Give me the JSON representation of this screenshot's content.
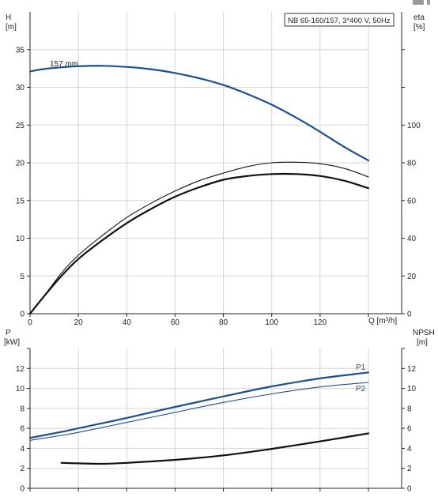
{
  "chart_data": [
    {
      "type": "line",
      "title": "NB 65-160/157, 3*400 V, 50Hz",
      "xlabel": "Q [m³/h]",
      "ylabel_left": [
        "H",
        "[m]"
      ],
      "ylabel_right": [
        "eta",
        "[%]"
      ],
      "xlim": [
        0,
        140
      ],
      "ylim_left": [
        0,
        40
      ],
      "ylim_right": [
        0,
        160
      ],
      "xticks": [
        "0",
        "20",
        "40",
        "60",
        "80",
        "100",
        "120"
      ],
      "yticks_left": [
        "0",
        "5",
        "10",
        "15",
        "20",
        "25",
        "30",
        "35"
      ],
      "yticks_right": [
        "0",
        "20",
        "40",
        "60",
        "80",
        "100"
      ],
      "grid": true,
      "annotations": [
        {
          "text": "157 mm"
        }
      ],
      "series": [
        {
          "axis": "left",
          "color": "#1f4e8c",
          "width": 2.2,
          "extended": true,
          "x": [
            0,
            5,
            13,
            20,
            30,
            40,
            50,
            60,
            70,
            80,
            90,
            100,
            110,
            120,
            130,
            140
          ],
          "y": [
            32.1,
            32.4,
            32.65,
            32.8,
            32.85,
            32.7,
            32.4,
            31.9,
            31.2,
            30.3,
            29.1,
            27.7,
            26.0,
            24.1,
            22.1,
            20.3
          ]
        },
        {
          "axis": "right",
          "color": "#111111",
          "width": 1.1,
          "extended": true,
          "x": [
            0,
            5,
            13,
            20,
            30,
            40,
            50,
            60,
            70,
            80,
            90,
            100,
            110,
            120,
            130,
            140
          ],
          "y": [
            0,
            8,
            21.5,
            31,
            41.5,
            51,
            58.5,
            65,
            70.5,
            74.5,
            78,
            80,
            80.3,
            79.5,
            77,
            72.5
          ]
        },
        {
          "axis": "right",
          "color": "#111111",
          "width": 2.2,
          "extended": true,
          "x": [
            0,
            5,
            13,
            20,
            30,
            40,
            50,
            60,
            70,
            80,
            90,
            100,
            110,
            120,
            130,
            140
          ],
          "y": [
            0,
            8,
            20,
            29,
            39,
            48,
            55.5,
            62,
            67,
            71,
            73,
            74,
            74,
            73,
            70.5,
            66.5
          ]
        }
      ]
    },
    {
      "type": "line",
      "xlim": [
        0,
        140
      ],
      "ylabel_left": [
        "P",
        "[kW]"
      ],
      "ylabel_right": [
        "NPSH",
        "[m]"
      ],
      "ylim_left": [
        0,
        14
      ],
      "ylim_right": [
        0,
        14
      ],
      "yticks_left": [
        "0",
        "2",
        "4",
        "6",
        "8",
        "10",
        "12"
      ],
      "yticks_right": [
        "0",
        "2",
        "4",
        "6",
        "8",
        "10",
        "12"
      ],
      "grid": true,
      "series": [
        {
          "name": "P1",
          "axis": "left",
          "color": "#1f4e8c",
          "width": 2.2,
          "extended": true,
          "x": [
            0,
            13,
            20,
            40,
            60,
            80,
            100,
            120,
            140
          ],
          "y": [
            5.05,
            5.65,
            6.0,
            7.05,
            8.15,
            9.2,
            10.2,
            11.0,
            11.6
          ]
        },
        {
          "name": "P2",
          "axis": "left",
          "color": "#1f4e8c",
          "width": 1.1,
          "extended": true,
          "x": [
            0,
            13,
            20,
            40,
            60,
            80,
            100,
            120,
            140
          ],
          "y": [
            4.8,
            5.3,
            5.6,
            6.6,
            7.6,
            8.6,
            9.45,
            10.15,
            10.6
          ]
        },
        {
          "axis": "right",
          "color": "#111111",
          "width": 2.2,
          "extended": true,
          "x": [
            13,
            20,
            30,
            40,
            60,
            80,
            100,
            120,
            140
          ],
          "y": [
            2.55,
            2.5,
            2.45,
            2.55,
            2.85,
            3.3,
            3.95,
            4.7,
            5.5
          ]
        }
      ]
    }
  ]
}
